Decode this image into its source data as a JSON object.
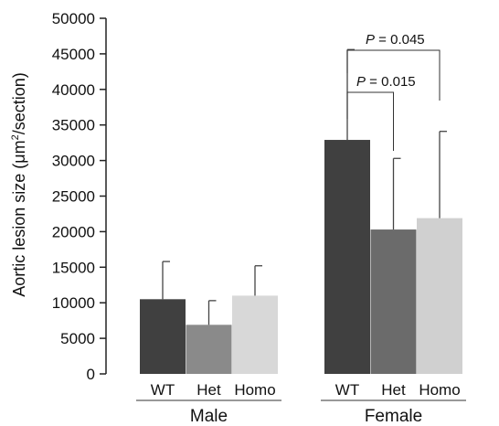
{
  "chart_data": {
    "type": "bar",
    "ylabel": "Aortic lesion size (μm²/section)",
    "ylabel_parts": [
      "Aortic lesion size (μm",
      "2",
      "/section)"
    ],
    "ylim": [
      0,
      50000
    ],
    "yticks": [
      0,
      5000,
      10000,
      15000,
      20000,
      25000,
      30000,
      35000,
      40000,
      45000,
      50000
    ],
    "grid": false,
    "groups": [
      {
        "name": "Male",
        "bars": [
          {
            "category": "WT",
            "value": 10500,
            "error": 5300,
            "color": "#404040"
          },
          {
            "category": "Het",
            "value": 6900,
            "error": 3400,
            "color": "#8a8a8a"
          },
          {
            "category": "Homo",
            "value": 11000,
            "error": 4200,
            "color": "#d8d8d8"
          }
        ]
      },
      {
        "name": "Female",
        "bars": [
          {
            "category": "WT",
            "value": 32900,
            "error": 12700,
            "color": "#404040"
          },
          {
            "category": "Het",
            "value": 20300,
            "error": 10000,
            "color": "#6b6b6b"
          },
          {
            "category": "Homo",
            "value": 21900,
            "error": 12200,
            "color": "#d0d0d0"
          }
        ]
      }
    ],
    "annotations": [
      {
        "label_italic": "P",
        "label_rest": " = 0.015",
        "group": 1,
        "from": 0,
        "to": 1
      },
      {
        "label_italic": "P",
        "label_rest": " = 0.045",
        "group": 1,
        "from": 0,
        "to": 2
      }
    ]
  }
}
